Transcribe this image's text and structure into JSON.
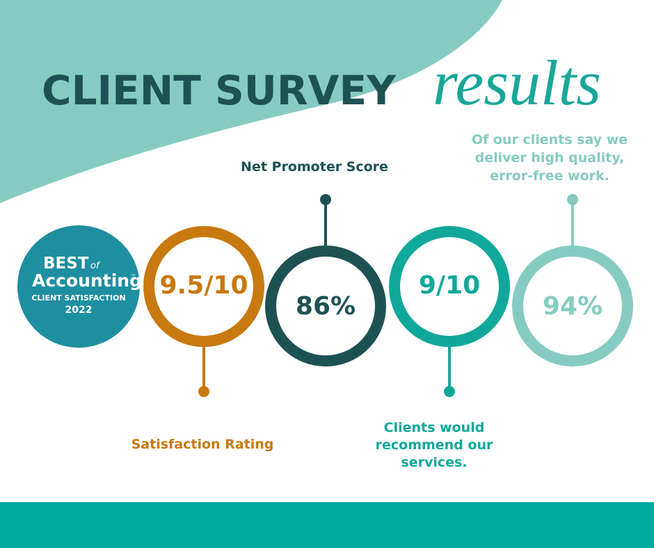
{
  "header": {
    "title": "CLIENT SURVEY",
    "script": "results"
  },
  "badge": {
    "best": "BEST",
    "of": "of",
    "accounting": "Accounting",
    "tm": "™",
    "subtitle": "CLIENT SATISFACTION",
    "year": "2022"
  },
  "stats": [
    {
      "value": "9.5/10",
      "caption": [
        "Satisfaction Rating"
      ]
    },
    {
      "value": "86%",
      "caption": [
        "Net Promoter Score"
      ]
    },
    {
      "value": "9/10",
      "caption": [
        "Clients would",
        "recommend our",
        "services."
      ]
    },
    {
      "value": "94%",
      "caption": [
        "Of our clients say we",
        "deliver high quality,",
        "error-free work."
      ]
    }
  ]
}
